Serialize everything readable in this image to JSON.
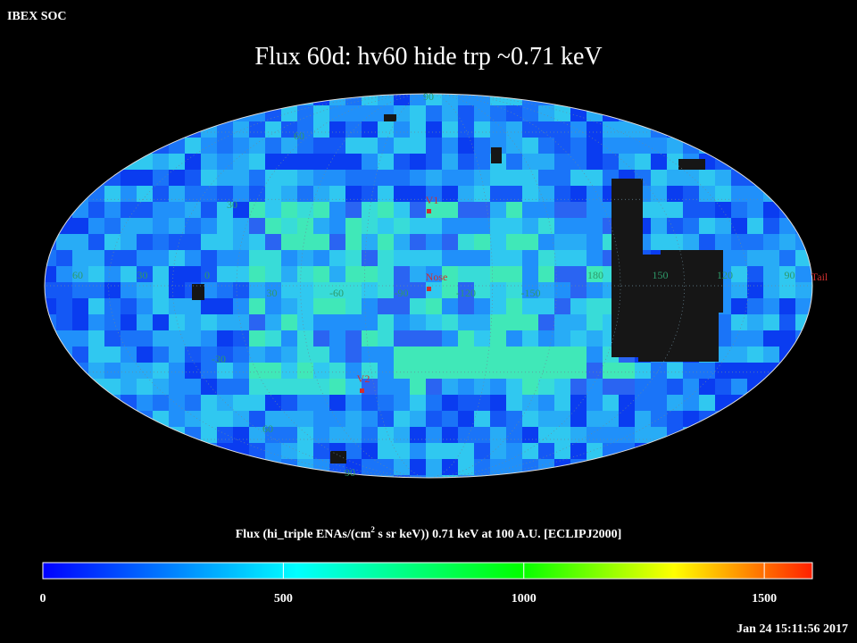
{
  "header": {
    "source": "IBEX SOC",
    "title": "Flux   60d: hv60 hide trp ~0.71 keV"
  },
  "map": {
    "lat_labels": [
      "90",
      "60",
      "30",
      "-30",
      "60",
      "90"
    ],
    "lon_labels": [
      "60",
      "30",
      "0",
      "30",
      "-60",
      "-90",
      "-120",
      "-150",
      "180",
      "150",
      "120",
      "90"
    ],
    "markers": [
      "V1",
      "Nose",
      "V2",
      "Tail"
    ]
  },
  "colorbar": {
    "label_parts": [
      "Flux (hi_triple ENAs/(cm",
      "2",
      " s sr keV))  0.71 keV at 100 A.U. [ECLIPJ2000]"
    ],
    "range": [
      0,
      1600
    ],
    "ticks": [
      0,
      500,
      1000,
      1500
    ]
  },
  "footer": {
    "timestamp": "Jan 24 15:11:56 2017"
  }
}
